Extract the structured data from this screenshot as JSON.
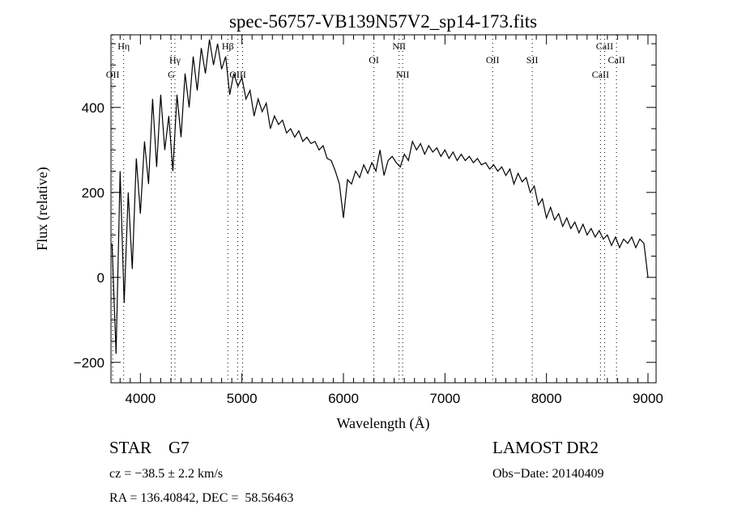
{
  "chart_data": {
    "type": "line",
    "title": "spec-56757-VB139N57V2_sp14-173.fits",
    "xlabel": "Wavelength (Å)",
    "ylabel": "Flux (relative)",
    "xlim": [
      3710,
      9080
    ],
    "ylim": [
      -248,
      571
    ],
    "x_ticks": [
      4000,
      5000,
      6000,
      7000,
      8000,
      9000
    ],
    "x_tick_labels": [
      "4000",
      "5000",
      "6000",
      "7000",
      "8000",
      "9000"
    ],
    "y_ticks": [
      -200,
      0,
      200,
      400
    ],
    "y_tick_labels": [
      "−200",
      "0",
      "200",
      "400"
    ],
    "grid": false,
    "series": [
      {
        "name": "spectrum",
        "color": "#000000",
        "x_start": 3720,
        "x_step": 40,
        "flux": [
          80,
          -180,
          250,
          -60,
          200,
          20,
          280,
          150,
          320,
          220,
          420,
          260,
          430,
          300,
          380,
          250,
          430,
          330,
          480,
          400,
          520,
          440,
          540,
          480,
          560,
          500,
          550,
          490,
          520,
          430,
          480,
          450,
          470,
          420,
          440,
          380,
          420,
          390,
          410,
          350,
          380,
          360,
          370,
          340,
          350,
          330,
          345,
          320,
          330,
          315,
          320,
          300,
          310,
          280,
          275,
          250,
          220,
          140,
          230,
          220,
          250,
          235,
          265,
          245,
          270,
          250,
          300,
          240,
          275,
          285,
          270,
          260,
          290,
          275,
          320,
          300,
          315,
          290,
          310,
          295,
          305,
          285,
          300,
          280,
          295,
          275,
          290,
          275,
          285,
          270,
          280,
          265,
          270,
          255,
          265,
          250,
          260,
          240,
          255,
          220,
          245,
          225,
          235,
          200,
          215,
          170,
          185,
          140,
          165,
          135,
          150,
          120,
          140,
          115,
          130,
          105,
          125,
          100,
          115,
          95,
          110,
          90,
          100,
          75,
          95,
          70,
          90,
          80,
          95,
          70,
          90,
          80,
          0
        ]
      }
    ],
    "spectral_lines": [
      {
        "label": "OII",
        "wavelength": 3727,
        "row": 3
      },
      {
        "label": "Hη",
        "wavelength": 3835,
        "row": 1
      },
      {
        "label": "G",
        "wavelength": 4304,
        "row": 3
      },
      {
        "label": "Hγ",
        "wavelength": 4340,
        "row": 2
      },
      {
        "label": "Hβ",
        "wavelength": 4861,
        "row": 1
      },
      {
        "label": "OIII",
        "wavelength": 4959,
        "row": 3
      },
      {
        "label": "",
        "wavelength": 5007,
        "row": 3
      },
      {
        "label": "OI",
        "wavelength": 6300,
        "row": 2
      },
      {
        "label": "NII",
        "wavelength": 6548,
        "row": 1
      },
      {
        "label": "NII",
        "wavelength": 6583,
        "row": 3
      },
      {
        "label": "OII",
        "wavelength": 7470,
        "row": 2
      },
      {
        "label": "SII",
        "wavelength": 7860,
        "row": 2
      },
      {
        "label": "CaII",
        "wavelength": 8532,
        "row": 3
      },
      {
        "label": "CaII",
        "wavelength": 8573,
        "row": 1
      },
      {
        "label": "CaII",
        "wavelength": 8690,
        "row": 2
      }
    ]
  },
  "info": {
    "class": "STAR    G7",
    "cz": "cz = −38.5 ± 2.2 km/s",
    "coords": "RA = 136.40842, DEC =  58.56463",
    "survey": "LAMOST DR2",
    "obs_date": "Obs−Date: 20140409"
  }
}
